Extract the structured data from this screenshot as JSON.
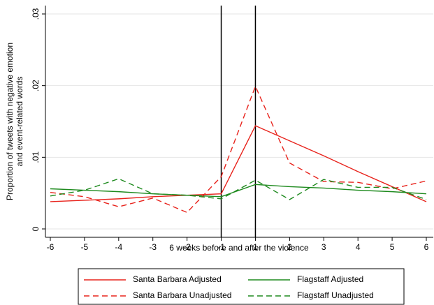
{
  "chart_data": {
    "type": "line",
    "xlabel": "6 weeks before and after the violence",
    "ylabel": [
      "Proportion of tweets with negative emotion",
      "and event-related words"
    ],
    "categories": [
      "-6",
      "-5",
      "-4",
      "-3",
      "-2",
      "-1",
      "1",
      "2",
      "3",
      "4",
      "5",
      "6"
    ],
    "vlines": [
      "-1",
      "1"
    ],
    "ylim": [
      0,
      0.03
    ],
    "yticks": [
      0,
      {
        "value": 0.01,
        "label": ".01"
      },
      {
        "value": 0.02,
        "label": ".02"
      },
      {
        "value": 0.03,
        "label": ".03"
      }
    ],
    "grid": true,
    "series": [
      {
        "name": "Santa Barbara Adjusted",
        "color": "#e8231c",
        "dash": false,
        "values": [
          0.0038,
          0.004,
          0.0042,
          0.0045,
          0.0047,
          0.0049,
          0.0144,
          0.0123,
          0.0102,
          0.008,
          0.0059,
          0.0038
        ]
      },
      {
        "name": "Flagstaff Adjusted",
        "color": "#1e8a1e",
        "dash": false,
        "values": [
          0.0056,
          0.0054,
          0.0052,
          0.0049,
          0.0047,
          0.0045,
          0.0062,
          0.0059,
          0.0057,
          0.0054,
          0.0052,
          0.0049
        ]
      },
      {
        "name": "Santa Barbara Unadjusted",
        "color": "#e8231c",
        "dash": true,
        "values": [
          0.0051,
          0.0045,
          0.0031,
          0.0043,
          0.0023,
          0.0073,
          0.0199,
          0.0092,
          0.0066,
          0.0065,
          0.0056,
          0.0067
        ]
      },
      {
        "name": "Flagstaff Unadjusted",
        "color": "#1e8a1e",
        "dash": true,
        "values": [
          0.0046,
          0.0054,
          0.007,
          0.0049,
          0.0047,
          0.0042,
          0.0068,
          0.0041,
          0.0069,
          0.0058,
          0.0058,
          0.0041
        ]
      }
    ]
  }
}
